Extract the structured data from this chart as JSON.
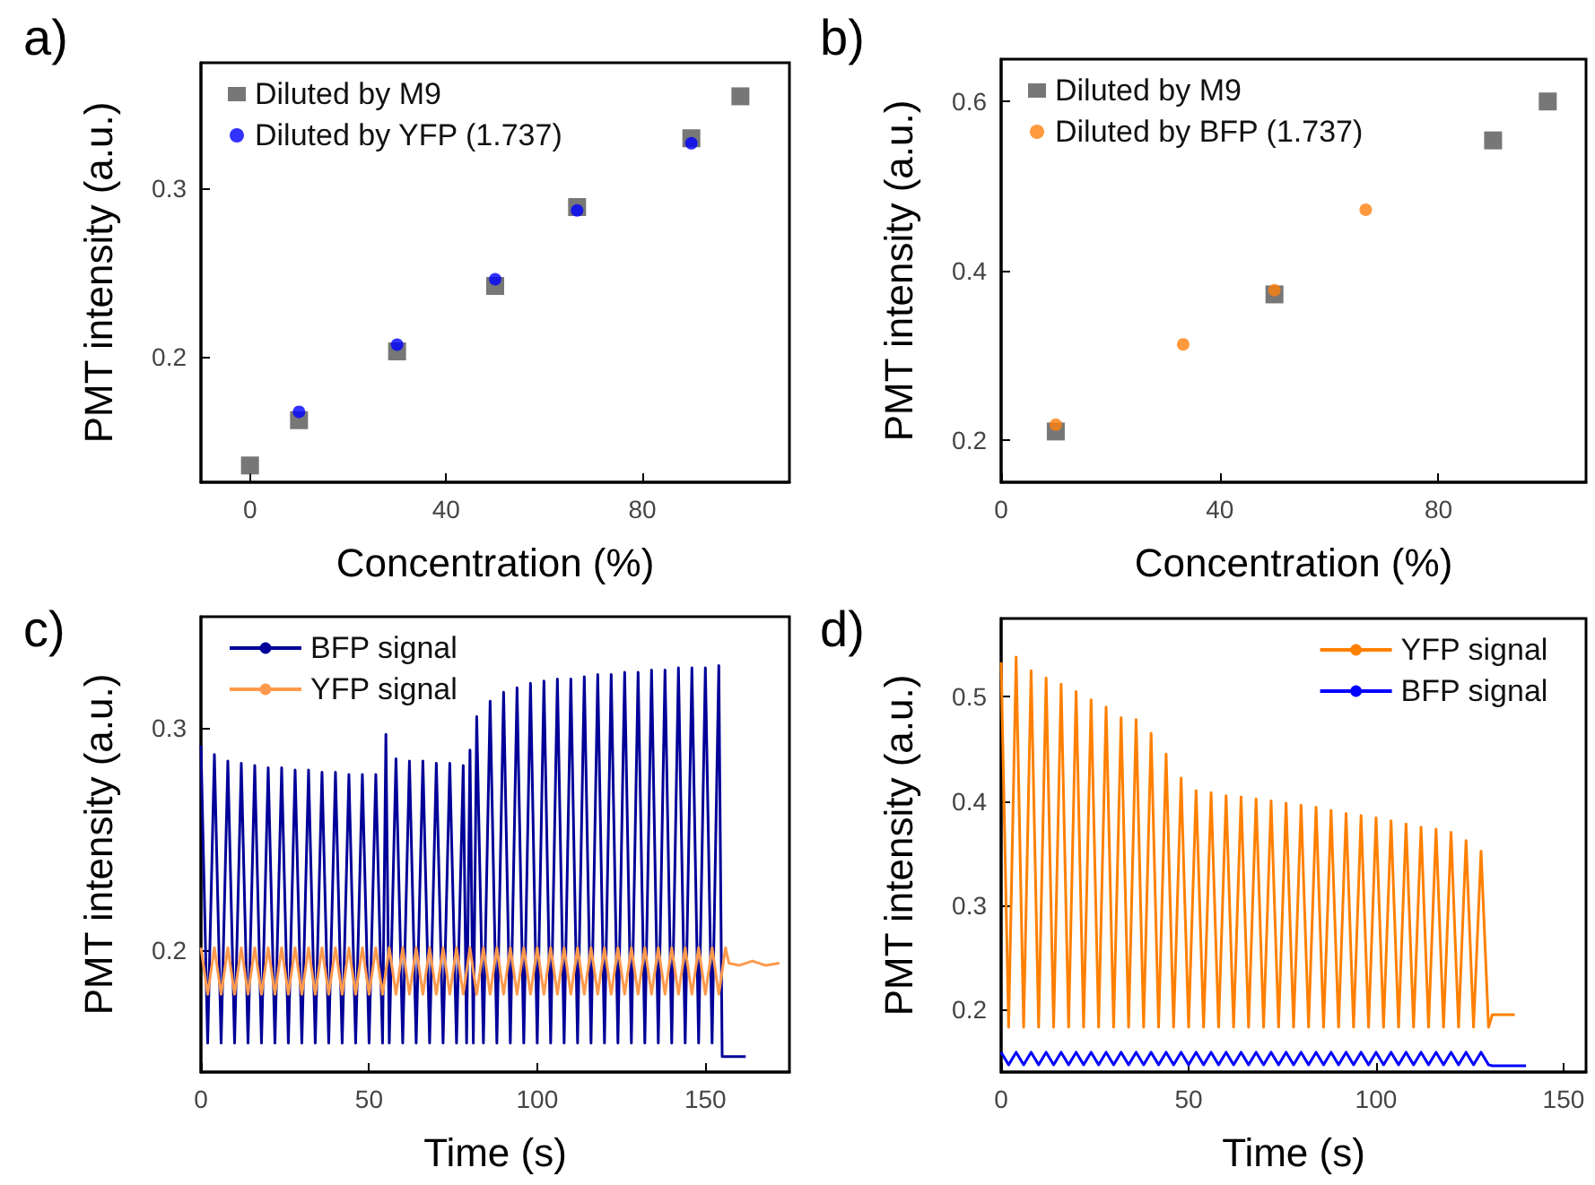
{
  "chart_data": [
    {
      "type": "scatter",
      "title": "a)",
      "xlabel": "Concentration (%)",
      "ylabel": "PMT intensity (a.u.)",
      "xlim": [
        -10,
        110
      ],
      "xticks": [
        0,
        40,
        80
      ],
      "ylim": [
        0.125,
        0.375
      ],
      "yticks": [
        0.2,
        0.3
      ],
      "legend": "top left",
      "series": [
        {
          "name": "Diluted by M9",
          "color": "#555555",
          "marker": "square",
          "x": [
            0,
            10,
            30,
            50,
            66.7,
            90,
            100
          ],
          "values": [
            0.135,
            0.162,
            0.203,
            0.242,
            0.289,
            0.33,
            0.355
          ]
        },
        {
          "name": "Diluted by YFP (1.737)",
          "color": "#0000ff",
          "marker": "circle",
          "x": [
            10,
            30,
            50,
            66.7,
            90
          ],
          "values": [
            0.167,
            0.207,
            0.246,
            0.287,
            0.327
          ]
        }
      ]
    },
    {
      "type": "scatter",
      "title": "b)",
      "xlabel": "Concentration (%)",
      "ylabel": "PMT intensity (a.u.)",
      "xlim": [
        0,
        107
      ],
      "xticks": [
        0,
        40,
        80
      ],
      "ylim": [
        0.15,
        0.65
      ],
      "yticks": [
        0.2,
        0.4,
        0.6
      ],
      "legend": "top left",
      "series": [
        {
          "name": "Diluted by M9",
          "color": "#555555",
          "marker": "square",
          "x": [
            10,
            50,
            90,
            100
          ],
          "values": [
            0.21,
            0.372,
            0.554,
            0.6
          ]
        },
        {
          "name": "Diluted by BFP (1.737)",
          "color": "#ff7f0e",
          "marker": "circle",
          "x": [
            10,
            33.3,
            50,
            66.7
          ],
          "values": [
            0.218,
            0.313,
            0.377,
            0.472
          ]
        }
      ]
    },
    {
      "type": "line",
      "title": "c)",
      "xlabel": "Time (s)",
      "ylabel": "PMT intensity (a.u.)",
      "xlim": [
        0,
        175
      ],
      "xticks": [
        0,
        50,
        100,
        150
      ],
      "ylim": [
        0.145,
        0.35
      ],
      "yticks": [
        0.2,
        0.3
      ],
      "legend": "top left",
      "marker": "none",
      "line_style": "solid",
      "series": [
        {
          "name": "BFP signal",
          "color": "#000099",
          "x": [
            0,
            2,
            4,
            6,
            8,
            10,
            12,
            14,
            16,
            18,
            20,
            22,
            24,
            26,
            28,
            30,
            32,
            34,
            36,
            38,
            40,
            42,
            44,
            46,
            48,
            50,
            52,
            54,
            55,
            56,
            58,
            60,
            62,
            64,
            66,
            68,
            70,
            72,
            74,
            76,
            78,
            79,
            80,
            81,
            82,
            84,
            86,
            88,
            90,
            92,
            94,
            96,
            98,
            100,
            102,
            104,
            106,
            108,
            110,
            112,
            114,
            116,
            118,
            120,
            122,
            124,
            126,
            128,
            130,
            132,
            134,
            136,
            138,
            140,
            142,
            144,
            146,
            148,
            150,
            152,
            154,
            155,
            158,
            162
          ],
          "values": [
            0.292,
            0.158,
            0.288,
            0.158,
            0.285,
            0.158,
            0.284,
            0.158,
            0.283,
            0.158,
            0.282,
            0.158,
            0.282,
            0.158,
            0.281,
            0.158,
            0.281,
            0.158,
            0.28,
            0.158,
            0.28,
            0.158,
            0.279,
            0.158,
            0.279,
            0.158,
            0.279,
            0.158,
            0.297,
            0.158,
            0.286,
            0.158,
            0.285,
            0.158,
            0.285,
            0.158,
            0.284,
            0.158,
            0.284,
            0.158,
            0.283,
            0.158,
            0.29,
            0.158,
            0.305,
            0.158,
            0.312,
            0.158,
            0.316,
            0.158,
            0.318,
            0.158,
            0.32,
            0.158,
            0.321,
            0.158,
            0.322,
            0.158,
            0.322,
            0.158,
            0.323,
            0.158,
            0.324,
            0.158,
            0.324,
            0.158,
            0.325,
            0.158,
            0.325,
            0.158,
            0.326,
            0.158,
            0.326,
            0.158,
            0.327,
            0.158,
            0.327,
            0.158,
            0.327,
            0.158,
            0.328,
            0.152,
            0.152,
            0.152
          ]
        },
        {
          "name": "YFP signal",
          "color": "#ff9a4d",
          "x": [
            0,
            2,
            4,
            6,
            8,
            10,
            12,
            14,
            16,
            18,
            20,
            22,
            24,
            26,
            28,
            30,
            32,
            34,
            36,
            38,
            40,
            42,
            44,
            46,
            48,
            50,
            52,
            54,
            56,
            58,
            60,
            62,
            64,
            66,
            68,
            70,
            72,
            74,
            76,
            78,
            80,
            82,
            84,
            86,
            88,
            90,
            92,
            94,
            96,
            98,
            100,
            102,
            104,
            106,
            108,
            110,
            112,
            114,
            116,
            118,
            120,
            122,
            124,
            126,
            128,
            130,
            132,
            134,
            136,
            138,
            140,
            142,
            144,
            146,
            148,
            150,
            152,
            154,
            156,
            157,
            160,
            164,
            168,
            172
          ],
          "values": [
            0.201,
            0.18,
            0.201,
            0.18,
            0.201,
            0.18,
            0.201,
            0.18,
            0.201,
            0.18,
            0.201,
            0.18,
            0.201,
            0.18,
            0.201,
            0.18,
            0.201,
            0.18,
            0.201,
            0.18,
            0.201,
            0.18,
            0.201,
            0.18,
            0.201,
            0.18,
            0.201,
            0.18,
            0.201,
            0.18,
            0.201,
            0.18,
            0.201,
            0.18,
            0.201,
            0.18,
            0.201,
            0.18,
            0.201,
            0.18,
            0.201,
            0.18,
            0.201,
            0.18,
            0.201,
            0.18,
            0.201,
            0.18,
            0.201,
            0.18,
            0.201,
            0.18,
            0.201,
            0.18,
            0.201,
            0.18,
            0.201,
            0.18,
            0.201,
            0.18,
            0.201,
            0.18,
            0.201,
            0.18,
            0.201,
            0.18,
            0.201,
            0.18,
            0.201,
            0.18,
            0.201,
            0.18,
            0.201,
            0.18,
            0.201,
            0.18,
            0.201,
            0.18,
            0.201,
            0.194,
            0.193,
            0.195,
            0.193,
            0.194
          ]
        }
      ]
    },
    {
      "type": "line",
      "title": "d)",
      "xlabel": "Time (s)",
      "ylabel": "PMT intensity (a.u.)",
      "xlim": [
        0,
        156
      ],
      "xticks": [
        0,
        50,
        100,
        150
      ],
      "ylim": [
        0.14,
        0.575
      ],
      "yticks": [
        0.2,
        0.3,
        0.4,
        0.5
      ],
      "legend": "top right",
      "marker": "none",
      "line_style": "solid",
      "series": [
        {
          "name": "YFP signal",
          "color": "#ff8000",
          "x": [
            0,
            2,
            4,
            6,
            8,
            10,
            12,
            14,
            16,
            18,
            20,
            22,
            24,
            26,
            28,
            30,
            32,
            34,
            36,
            38,
            40,
            42,
            44,
            46,
            48,
            50,
            52,
            54,
            56,
            58,
            60,
            62,
            64,
            66,
            68,
            70,
            72,
            74,
            76,
            78,
            80,
            82,
            84,
            86,
            88,
            90,
            92,
            94,
            96,
            98,
            100,
            102,
            104,
            106,
            108,
            110,
            112,
            114,
            116,
            118,
            120,
            122,
            124,
            126,
            128,
            130,
            131,
            134,
            137
          ],
          "values": [
            0.533,
            0.183,
            0.538,
            0.183,
            0.525,
            0.183,
            0.518,
            0.183,
            0.512,
            0.183,
            0.505,
            0.183,
            0.497,
            0.183,
            0.49,
            0.183,
            0.48,
            0.183,
            0.478,
            0.183,
            0.465,
            0.183,
            0.445,
            0.183,
            0.422,
            0.183,
            0.41,
            0.183,
            0.408,
            0.183,
            0.405,
            0.183,
            0.404,
            0.183,
            0.402,
            0.183,
            0.4,
            0.183,
            0.398,
            0.183,
            0.396,
            0.183,
            0.394,
            0.183,
            0.391,
            0.183,
            0.388,
            0.183,
            0.386,
            0.183,
            0.384,
            0.183,
            0.381,
            0.183,
            0.378,
            0.183,
            0.375,
            0.183,
            0.373,
            0.183,
            0.37,
            0.183,
            0.362,
            0.183,
            0.352,
            0.183,
            0.195,
            0.195,
            0.195
          ]
        },
        {
          "name": "BFP signal",
          "color": "#0000ff",
          "x": [
            0,
            2,
            4,
            6,
            8,
            10,
            12,
            14,
            16,
            18,
            20,
            22,
            24,
            26,
            28,
            30,
            32,
            34,
            36,
            38,
            40,
            42,
            44,
            46,
            48,
            50,
            52,
            54,
            56,
            58,
            60,
            62,
            64,
            66,
            68,
            70,
            72,
            74,
            76,
            78,
            80,
            82,
            84,
            86,
            88,
            90,
            92,
            94,
            96,
            98,
            100,
            102,
            104,
            106,
            108,
            110,
            112,
            114,
            116,
            118,
            120,
            122,
            124,
            126,
            128,
            130,
            131,
            135,
            140
          ],
          "values": [
            0.159,
            0.147,
            0.159,
            0.147,
            0.159,
            0.147,
            0.159,
            0.147,
            0.159,
            0.147,
            0.159,
            0.147,
            0.159,
            0.147,
            0.159,
            0.147,
            0.159,
            0.147,
            0.159,
            0.147,
            0.159,
            0.147,
            0.159,
            0.147,
            0.159,
            0.147,
            0.159,
            0.147,
            0.159,
            0.147,
            0.159,
            0.147,
            0.159,
            0.147,
            0.159,
            0.147,
            0.159,
            0.147,
            0.159,
            0.147,
            0.159,
            0.147,
            0.159,
            0.147,
            0.159,
            0.147,
            0.159,
            0.147,
            0.159,
            0.147,
            0.159,
            0.147,
            0.159,
            0.147,
            0.159,
            0.147,
            0.159,
            0.147,
            0.159,
            0.147,
            0.159,
            0.147,
            0.159,
            0.147,
            0.159,
            0.147,
            0.146,
            0.146,
            0.146
          ]
        }
      ]
    }
  ]
}
